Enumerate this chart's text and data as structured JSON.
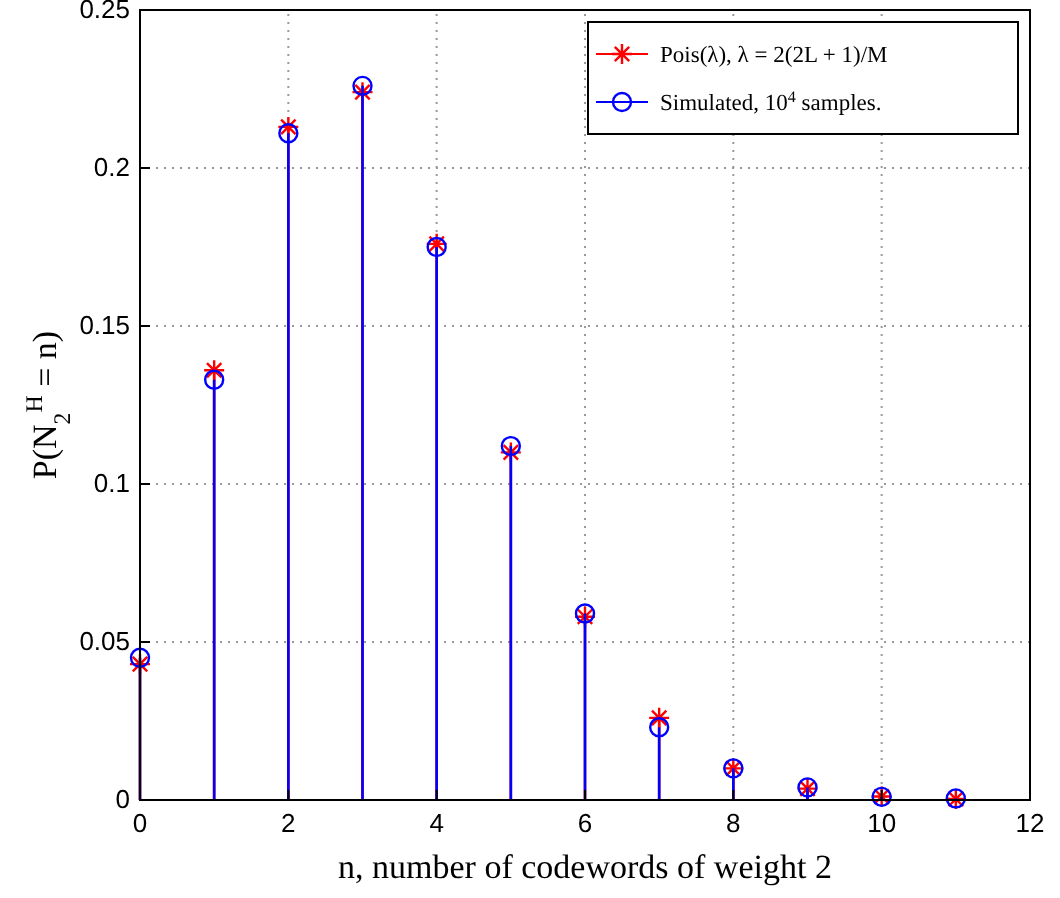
{
  "chart_data": {
    "type": "lollipop",
    "xlabel": "n, number of codewords of weight 2",
    "ylabel": "P(N$_{2}$$^{H}$ = n)",
    "x": [
      0,
      1,
      2,
      3,
      4,
      5,
      6,
      7,
      8,
      9,
      10,
      11
    ],
    "series": [
      {
        "name": "Pois(λ), λ = 2(2L + 1)/M",
        "color": "#ff0000",
        "marker": "cross",
        "values": [
          0.043,
          0.136,
          0.213,
          0.224,
          0.176,
          0.11,
          0.058,
          0.026,
          0.01,
          0.0036,
          0.0011,
          0.0003
        ]
      },
      {
        "name": "Simulated, 10$^{4}$ samples.",
        "color": "#0000ff",
        "marker": "circle",
        "values": [
          0.045,
          0.133,
          0.211,
          0.226,
          0.175,
          0.112,
          0.059,
          0.023,
          0.01,
          0.004,
          0.001,
          0.0005
        ]
      }
    ],
    "xlim": [
      0,
      12
    ],
    "xticks": [
      0,
      2,
      4,
      6,
      8,
      10,
      12
    ],
    "ylim": [
      0,
      0.25
    ],
    "yticks": [
      0,
      0.05,
      0.1,
      0.15,
      0.2,
      0.25
    ],
    "grid": true,
    "legend": "top right"
  }
}
